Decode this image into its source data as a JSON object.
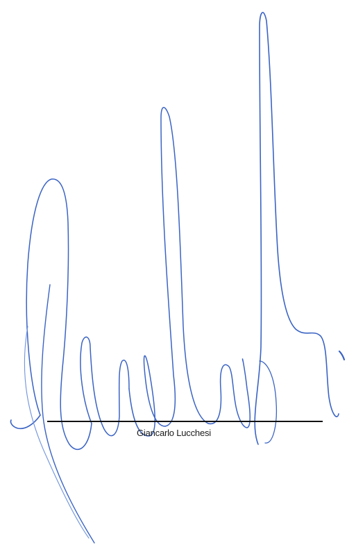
{
  "signer": {
    "name": "Giancarlo Lucchesi"
  },
  "colors": {
    "ink": "#3a63c4",
    "ink_light": "#6f93dc",
    "line": "#111111",
    "background": "#ffffff"
  }
}
